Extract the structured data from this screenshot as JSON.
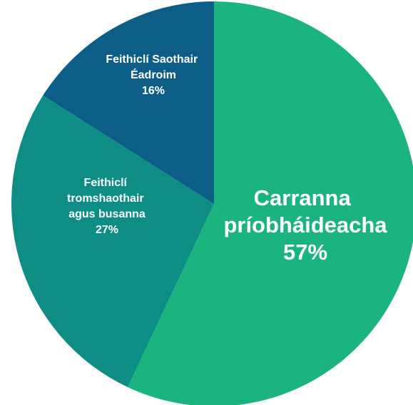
{
  "chart_data": {
    "type": "pie",
    "categories": [
      "Carranna príobháideacha",
      "Feithiclí tromshaothair agus busanna",
      "Feithiclí Saothair Éadroim"
    ],
    "values": [
      57,
      27,
      16
    ],
    "value_labels": [
      "57%",
      "27%",
      "16%"
    ],
    "colors": [
      "#1bb47e",
      "#0e8d85",
      "#0d5e86"
    ]
  }
}
